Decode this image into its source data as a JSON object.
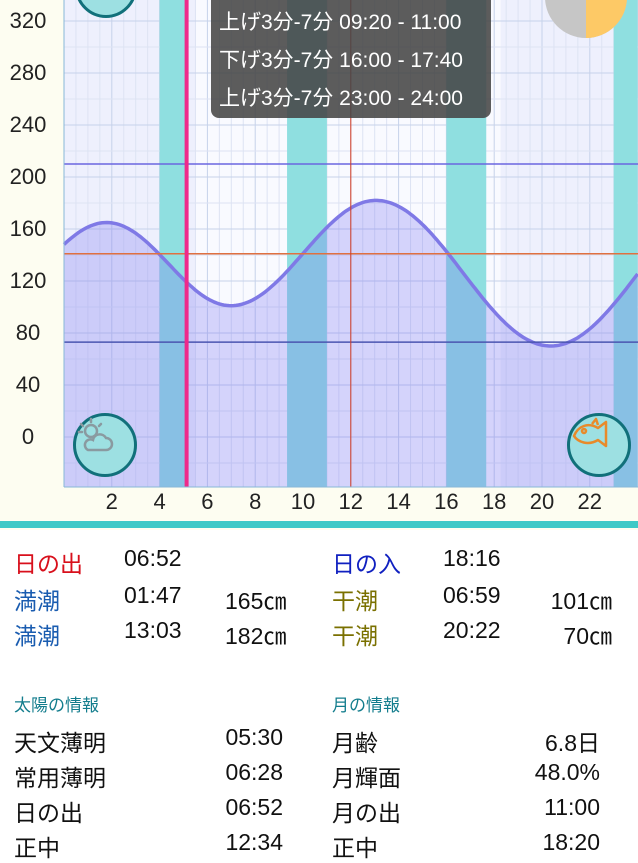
{
  "chart_data": {
    "type": "area",
    "xlabel": "",
    "ylabel": "",
    "x_ticks": [
      "2",
      "4",
      "6",
      "8",
      "10",
      "12",
      "14",
      "16",
      "18",
      "20",
      "22"
    ],
    "y_ticks": [
      "0",
      "40",
      "80",
      "120",
      "160",
      "200",
      "240",
      "280",
      "320"
    ],
    "xlim": [
      0,
      24
    ],
    "ylim": [
      -38,
      337
    ],
    "tide_extremes": [
      {
        "time": "01:47",
        "hour": 1.783,
        "cm": 165
      },
      {
        "time": "06:59",
        "hour": 6.983,
        "cm": 101
      },
      {
        "time": "13:03",
        "hour": 13.05,
        "cm": 182
      },
      {
        "time": "20:22",
        "hour": 20.367,
        "cm": 70
      }
    ],
    "reference_lines_cm": [
      210,
      141,
      73
    ],
    "current_hour": 5.13,
    "noon_hour": 12,
    "fishing_bands": [
      [
        4.0,
        5.1
      ],
      [
        9.333,
        11.0
      ],
      [
        16.0,
        17.667
      ],
      [
        23.0,
        24.0
      ]
    ],
    "daylight": [
      5.5,
      18.27
    ],
    "colors": {
      "curve": "#7f79e6",
      "current_line": "#ee2a8a",
      "band": "#8fdfe0",
      "ref_top": "#6a66e0",
      "ref_mid": "#e07040",
      "ref_low": "#4a55b0"
    }
  },
  "tooltip": [
    "上げ3分-7分 09:20 - 11:00",
    "下げ3分-7分 16:00 - 17:40",
    "上げ3分-7分 23:00 - 24:00"
  ],
  "icons": {
    "weather": "weather-partly-cloudy-icon",
    "fish": "fish-icon",
    "moon": "moon-phase-icon"
  },
  "moon_phase_percent": 48.0,
  "summary": {
    "sunrise": {
      "label": "日の出",
      "time": "06:52"
    },
    "sunset": {
      "label": "日の入",
      "time": "18:16"
    },
    "high1": {
      "label": "満潮",
      "time": "01:47",
      "height": "165㎝"
    },
    "low1": {
      "label": "干潮",
      "time": "06:59",
      "height": "101㎝"
    },
    "high2": {
      "label": "満潮",
      "time": "13:03",
      "height": "182㎝"
    },
    "low2": {
      "label": "干潮",
      "time": "20:22",
      "height": "70㎝"
    }
  },
  "sun_info": {
    "title": "太陽の情報",
    "rows": [
      {
        "label": "天文薄明",
        "value": "05:30"
      },
      {
        "label": "常用薄明",
        "value": "06:28"
      },
      {
        "label": "日の出",
        "value": "06:52"
      },
      {
        "label": "正中",
        "value": "12:34"
      }
    ]
  },
  "moon_info": {
    "title": "月の情報",
    "rows": [
      {
        "label": "月齢",
        "value": "6.8日"
      },
      {
        "label": "月輝面",
        "value": "48.0%"
      },
      {
        "label": "月の出",
        "value": "11:00"
      },
      {
        "label": "正中",
        "value": "18:20"
      }
    ]
  }
}
